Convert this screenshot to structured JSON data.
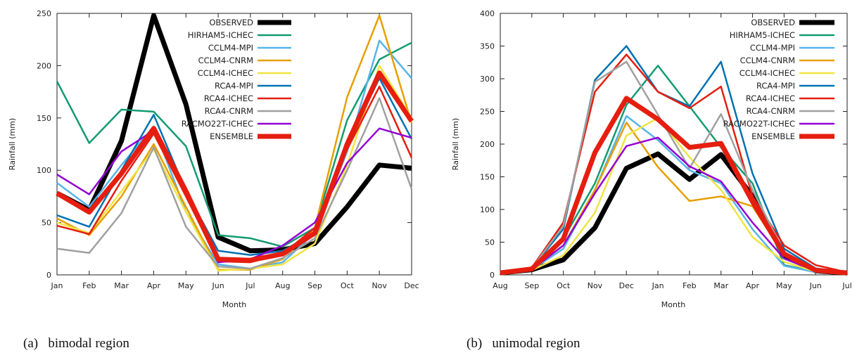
{
  "chart_data": [
    {
      "type": "line",
      "caption": "(a)   bimodal region",
      "xlabel": "Month",
      "ylabel": "Rainfall (mm)",
      "ylim": [
        0,
        250
      ],
      "yticks": [
        0,
        50,
        100,
        150,
        200,
        250
      ],
      "categories": [
        "Jan",
        "Feb",
        "Mar",
        "Apr",
        "May",
        "Jun",
        "Jul",
        "Aug",
        "Sep",
        "Oct",
        "Nov",
        "Dec"
      ],
      "legend_position": "top-right",
      "series": [
        {
          "name": "OBSERVED",
          "color": "#000000",
          "width": 7,
          "values": [
            78,
            62,
            128,
            248,
            163,
            36,
            23,
            24,
            30,
            65,
            105,
            102
          ]
        },
        {
          "name": "HIRHAM5-ICHEC",
          "color": "#129B71",
          "width": 2.5,
          "values": [
            185,
            126,
            158,
            156,
            123,
            38,
            35,
            27,
            45,
            148,
            206,
            222
          ]
        },
        {
          "name": "CCLM4-MPI",
          "color": "#56B4E9",
          "width": 2.5,
          "values": [
            88,
            65,
            105,
            142,
            60,
            10,
            6,
            12,
            40,
            118,
            224,
            188
          ]
        },
        {
          "name": "CCLM4-CNRM",
          "color": "#E69F00",
          "width": 2.5,
          "values": [
            54,
            38,
            75,
            125,
            65,
            5,
            5,
            15,
            45,
            170,
            248,
            145
          ]
        },
        {
          "name": "CCLM4-ICHEC",
          "color": "#F0E442",
          "width": 2.5,
          "values": [
            50,
            40,
            80,
            120,
            60,
            4,
            6,
            10,
            30,
            105,
            200,
            150
          ]
        },
        {
          "name": "RCA4-MPI",
          "color": "#0072B2",
          "width": 2.5,
          "values": [
            57,
            46,
            100,
            153,
            80,
            23,
            19,
            23,
            40,
            125,
            188,
            130
          ]
        },
        {
          "name": "RCA4-ICHEC",
          "color": "#E51E10",
          "width": 2.5,
          "values": [
            47,
            39,
            90,
            135,
            75,
            13,
            12,
            20,
            45,
            120,
            180,
            112
          ]
        },
        {
          "name": "RCA4-CNRM",
          "color": "#A0A0A0",
          "width": 2.5,
          "values": [
            25,
            21,
            59,
            122,
            46,
            8,
            6,
            16,
            35,
            100,
            169,
            82
          ]
        },
        {
          "name": "RACMO22T-ICHEC",
          "color": "#9400D3",
          "width": 2.5,
          "values": [
            96,
            77,
            118,
            138,
            78,
            12,
            15,
            28,
            50,
            107,
            140,
            131
          ]
        },
        {
          "name": "ENSEMBLE",
          "color": "#E51E10",
          "width": 7,
          "values": [
            78,
            60,
            97,
            140,
            80,
            15,
            14,
            20,
            40,
            125,
            193,
            147
          ]
        }
      ]
    },
    {
      "type": "line",
      "caption": "(b)   unimodal region",
      "xlabel": "Month",
      "ylabel": "Rainfall (mm)",
      "ylim": [
        0,
        400
      ],
      "yticks": [
        0,
        50,
        100,
        150,
        200,
        250,
        300,
        350,
        400
      ],
      "categories": [
        "Aug",
        "Sep",
        "Oct",
        "Nov",
        "Dec",
        "Jan",
        "Feb",
        "Mar",
        "Apr",
        "May",
        "Jun",
        "Jul"
      ],
      "legend_position": "top-right",
      "series": [
        {
          "name": "OBSERVED",
          "color": "#000000",
          "width": 7,
          "values": [
            3,
            8,
            23,
            72,
            163,
            185,
            146,
            184,
            120,
            30,
            6,
            3
          ]
        },
        {
          "name": "HIRHAM5-ICHEC",
          "color": "#129B71",
          "width": 2.5,
          "values": [
            3,
            9,
            55,
            140,
            260,
            320,
            258,
            195,
            140,
            15,
            5,
            3
          ]
        },
        {
          "name": "CCLM4-MPI",
          "color": "#56B4E9",
          "width": 2.5,
          "values": [
            3,
            8,
            40,
            130,
            243,
            206,
            160,
            140,
            70,
            14,
            4,
            3
          ]
        },
        {
          "name": "CCLM4-CNRM",
          "color": "#E69F00",
          "width": 2.5,
          "values": [
            3,
            9,
            45,
            130,
            233,
            165,
            113,
            120,
            105,
            30,
            6,
            3
          ]
        },
        {
          "name": "CCLM4-ICHEC",
          "color": "#F0E442",
          "width": 2.5,
          "values": [
            3,
            7,
            30,
            95,
            213,
            240,
            180,
            130,
            58,
            20,
            5,
            3
          ]
        },
        {
          "name": "RCA4-MPI",
          "color": "#0072B2",
          "width": 2.5,
          "values": [
            3,
            10,
            70,
            298,
            350,
            280,
            258,
            326,
            155,
            40,
            10,
            4
          ]
        },
        {
          "name": "RCA4-ICHEC",
          "color": "#E51E10",
          "width": 2.5,
          "values": [
            3,
            11,
            80,
            280,
            337,
            280,
            255,
            288,
            120,
            45,
            15,
            4
          ]
        },
        {
          "name": "RCA4-CNRM",
          "color": "#A0A0A0",
          "width": 2.5,
          "values": [
            3,
            10,
            75,
            295,
            326,
            245,
            163,
            246,
            130,
            35,
            8,
            3
          ]
        },
        {
          "name": "RACMO22T-ICHEC",
          "color": "#9400D3",
          "width": 2.5,
          "values": [
            3,
            8,
            45,
            125,
            197,
            210,
            166,
            143,
            80,
            25,
            6,
            3
          ]
        },
        {
          "name": "ENSEMBLE",
          "color": "#E51E10",
          "width": 7,
          "values": [
            3,
            9,
            55,
            187,
            270,
            238,
            195,
            201,
            112,
            32,
            7,
            3
          ]
        }
      ]
    }
  ]
}
